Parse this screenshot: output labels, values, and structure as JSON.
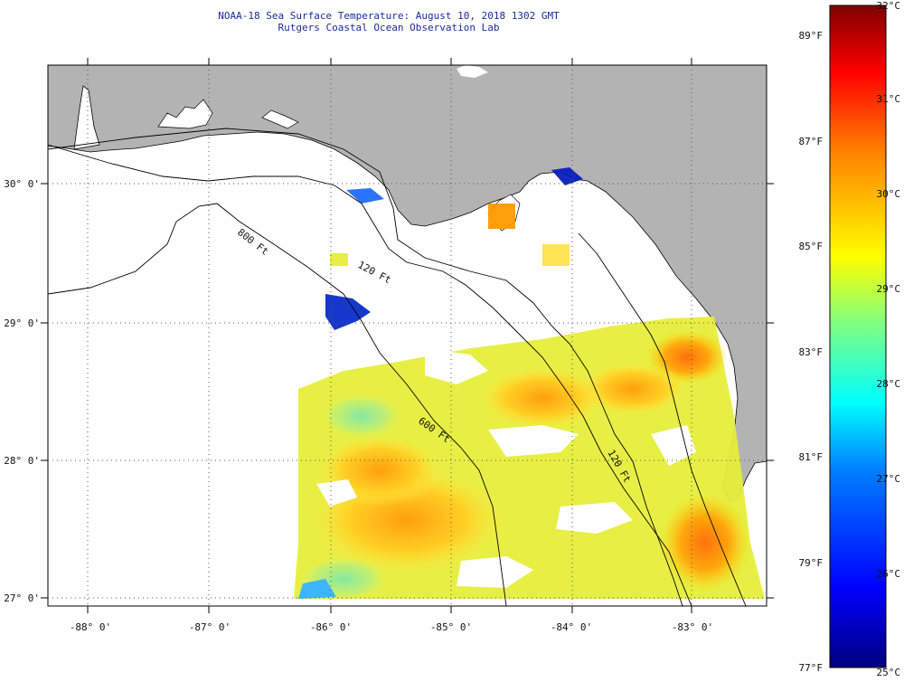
{
  "header": {
    "title": "NOAA-18 Sea Surface Temperature:  August 10, 2018 1302 GMT",
    "subtitle": "Rutgers Coastal Ocean Observation Lab"
  },
  "map": {
    "latitude_labels": [
      "30° 0'",
      "29° 0'",
      "28° 0'",
      "27° 0'"
    ],
    "longitude_labels": [
      "-88° 0'",
      "-87° 0'",
      "-86° 0'",
      "-85° 0'",
      "-84° 0'",
      "-83° 0'"
    ],
    "isobath_labels": [
      "800 Ft",
      "120 Ft",
      "600 Ft",
      "120 Ft"
    ],
    "colors": {
      "land": "#b3b3b3",
      "no_data": "#ffffff",
      "grid": "#555555"
    }
  },
  "colorbar": {
    "celsius_labels": [
      "32°C",
      "31°C",
      "30°C",
      "29°C",
      "28°C",
      "27°C",
      "26°C",
      "25°C"
    ],
    "fahrenheit_labels": [
      "89°F",
      "87°F",
      "85°F",
      "83°F",
      "81°F",
      "79°F",
      "77°F"
    ],
    "range_celsius": [
      25,
      32
    ],
    "gradient_colors": [
      "#00007f",
      "#0000ff",
      "#0080ff",
      "#00ffff",
      "#80ff80",
      "#ffff00",
      "#ff8000",
      "#ff0000",
      "#7f0000"
    ]
  }
}
